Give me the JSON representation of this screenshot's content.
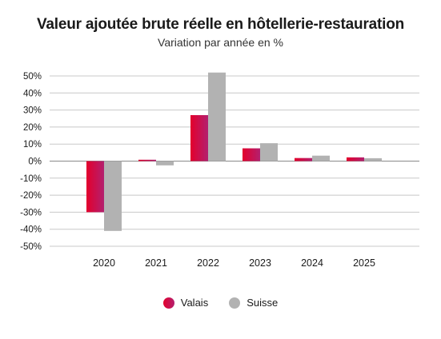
{
  "chart_data": {
    "type": "bar",
    "title": "Valeur ajoutée brute réelle en hôtellerie-restauration",
    "subtitle": "Variation par année en %",
    "categories": [
      "2020",
      "2021",
      "2022",
      "2023",
      "2024",
      "2025"
    ],
    "series": [
      {
        "name": "Valais",
        "values": [
          -30,
          0.8,
          27,
          7.5,
          1.8,
          2.2
        ]
      },
      {
        "name": "Suisse",
        "values": [
          -41,
          -2.5,
          52,
          10.5,
          3.2,
          1.7
        ]
      }
    ],
    "ylim": [
      -50,
      50
    ],
    "yticks": [
      "50%",
      "40%",
      "30%",
      "20%",
      "10%",
      "0%",
      "-10%",
      "-20%",
      "-30%",
      "-40%",
      "-50%"
    ],
    "grid": true,
    "legend_position": "bottom",
    "colors": {
      "valais_start": "#e3002c",
      "valais_end": "#b3206f",
      "suisse": "#b2b2b2"
    }
  }
}
